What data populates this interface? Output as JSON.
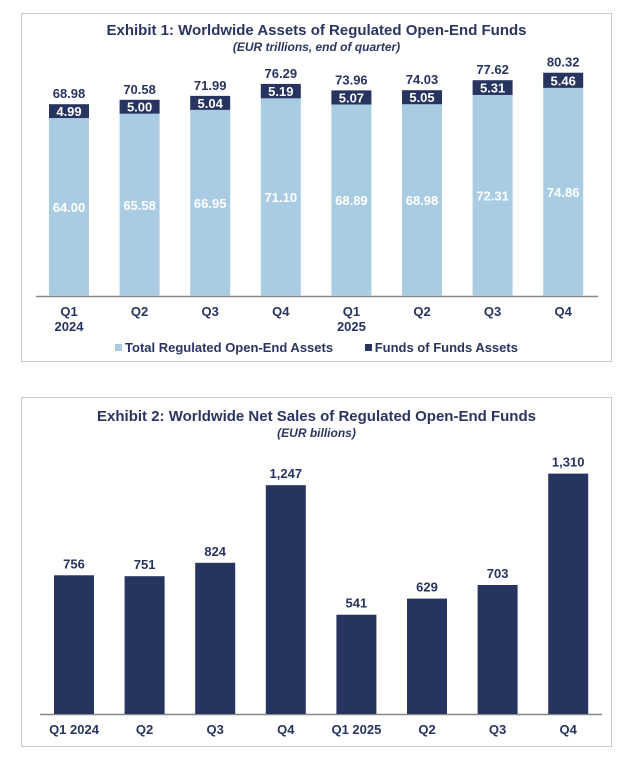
{
  "chart_data": [
    {
      "type": "bar",
      "stacked": true,
      "title": "Exhibit 1: Worldwide Assets of Regulated Open-End Funds",
      "subtitle": "(EUR trillions, end of quarter)",
      "categories": [
        [
          "Q1",
          "2024"
        ],
        [
          "Q2",
          ""
        ],
        [
          "Q3",
          ""
        ],
        [
          "Q4",
          ""
        ],
        [
          "Q1",
          "2025"
        ],
        [
          "Q2",
          ""
        ],
        [
          "Q3",
          ""
        ],
        [
          "Q4",
          ""
        ]
      ],
      "series": [
        {
          "name": "Total Regulated Open-End Assets",
          "color": "#a9cce3",
          "values": [
            64.0,
            65.58,
            66.95,
            71.1,
            68.89,
            68.98,
            72.31,
            74.86
          ]
        },
        {
          "name": "Funds of Funds Assets",
          "color": "#27345f",
          "values": [
            4.99,
            5.0,
            5.04,
            5.19,
            5.07,
            5.05,
            5.31,
            5.46
          ]
        }
      ],
      "totals": [
        68.98,
        70.58,
        71.99,
        76.29,
        73.96,
        74.03,
        77.62,
        80.32
      ],
      "legend": "bottom",
      "grid": false
    },
    {
      "type": "bar",
      "title": "Exhibit 2: Worldwide Net Sales of Regulated Open-End Funds",
      "subtitle": "(EUR billions)",
      "categories": [
        "Q1 2024",
        "Q2",
        "Q3",
        "Q4",
        "Q1 2025",
        "Q2",
        "Q3",
        "Q4"
      ],
      "values": [
        756,
        751,
        824,
        1247,
        541,
        629,
        703,
        1310
      ],
      "labels": [
        "756",
        "751",
        "824",
        "1,247",
        "541",
        "629",
        "703",
        "1,310"
      ],
      "color": "#27345f",
      "grid": false
    }
  ]
}
